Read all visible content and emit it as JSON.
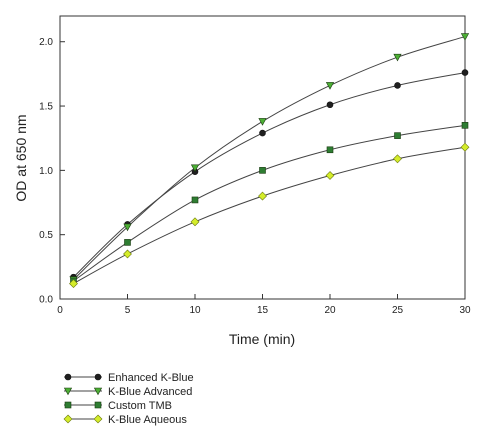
{
  "chart_data": {
    "type": "line",
    "title": "",
    "xlabel": "Time (min)",
    "ylabel": "OD at 650 nm",
    "xlim": [
      0,
      30
    ],
    "ylim": [
      0,
      2.2
    ],
    "x_ticks": [
      "0",
      "5",
      "10",
      "15",
      "20",
      "25",
      "30"
    ],
    "y_ticks": [
      "0.0",
      "0.5",
      "1.0",
      "1.5",
      "2.0"
    ],
    "x_tick_values": [
      0,
      5,
      10,
      15,
      20,
      25,
      30
    ],
    "y_tick_values": [
      0,
      0.5,
      1.0,
      1.5,
      2.0
    ],
    "grid": false,
    "legend_position": "bottom-left",
    "x": [
      1,
      5,
      10,
      15,
      20,
      25,
      30
    ],
    "series": [
      {
        "name": "Enhanced K-Blue",
        "values": [
          0.17,
          0.58,
          0.99,
          1.29,
          1.51,
          1.66,
          1.76
        ],
        "marker": "circle",
        "marker_color": "#1f1f1f",
        "line_color": "#444444"
      },
      {
        "name": "K-Blue Advanced",
        "values": [
          0.15,
          0.56,
          1.02,
          1.38,
          1.66,
          1.88,
          2.04
        ],
        "marker": "triangle-down",
        "marker_color": "#4caf35",
        "line_color": "#444444"
      },
      {
        "name": "Custom TMB",
        "values": [
          0.14,
          0.44,
          0.77,
          1.0,
          1.16,
          1.27,
          1.35
        ],
        "marker": "square",
        "marker_color": "#2e7d32",
        "line_color": "#444444"
      },
      {
        "name": "K-Blue Aqueous",
        "values": [
          0.12,
          0.35,
          0.6,
          0.8,
          0.96,
          1.09,
          1.18
        ],
        "marker": "diamond",
        "marker_color": "#d4ec2a",
        "line_color": "#444444"
      }
    ]
  }
}
